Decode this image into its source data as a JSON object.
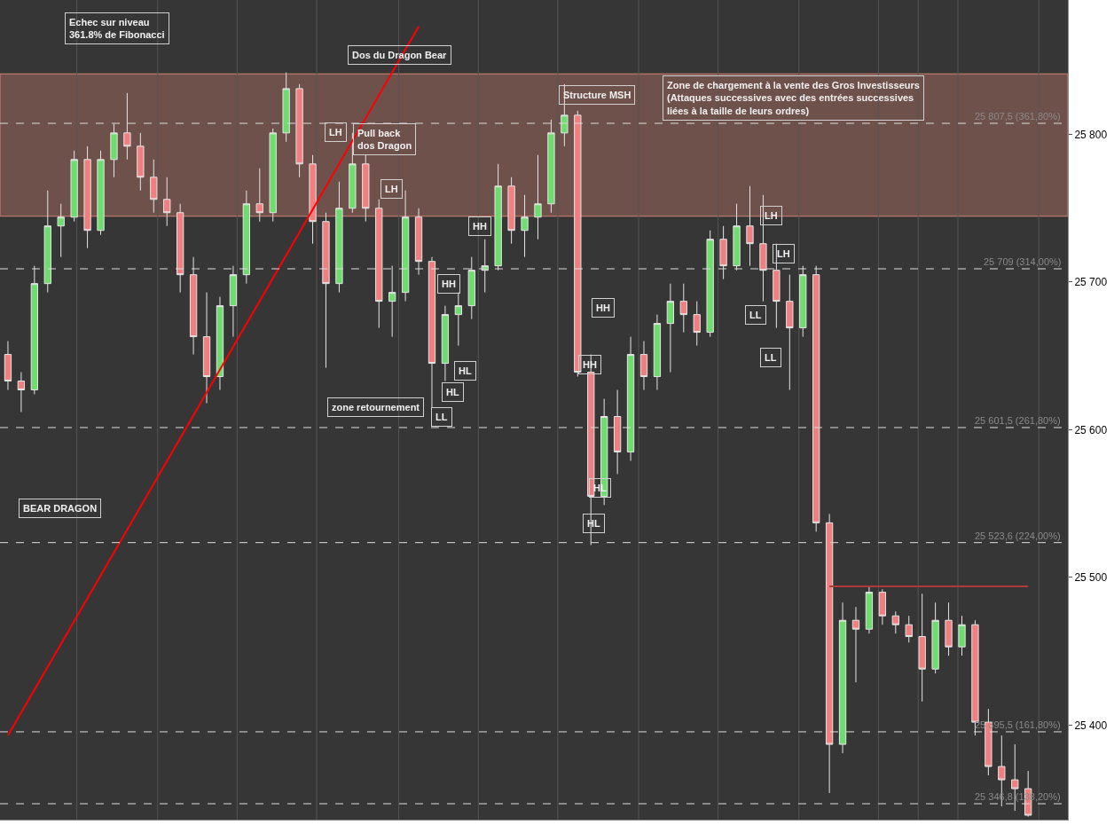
{
  "chart_data": {
    "type": "candlestick",
    "categories": [
      null,
      null,
      null,
      null,
      null,
      null,
      null,
      null,
      null,
      null,
      null,
      null,
      null,
      null,
      null,
      null,
      null,
      null,
      null,
      null,
      null,
      null,
      null,
      null,
      null,
      null,
      null,
      null,
      null,
      null,
      null,
      null,
      null,
      null,
      null,
      null,
      null,
      null,
      null,
      null,
      null,
      null,
      null,
      null,
      null,
      null,
      null,
      null,
      null,
      null,
      null,
      null,
      null,
      null,
      null,
      null,
      null,
      null,
      null,
      null,
      null,
      null,
      null,
      null,
      null,
      null,
      null,
      null,
      null,
      null,
      null,
      null,
      null,
      null,
      null,
      null,
      null,
      null
    ],
    "ohlc": [
      [
        25651,
        25660,
        25627,
        25633
      ],
      [
        25633,
        25639,
        25612,
        25627
      ],
      [
        25627,
        25711,
        25624,
        25699
      ],
      [
        25699,
        25762,
        25693,
        25738
      ],
      [
        25738,
        25753,
        25717,
        25744
      ],
      [
        25744,
        25789,
        25741,
        25783
      ],
      [
        25783,
        25792,
        25723,
        25735
      ],
      [
        25735,
        25789,
        25732,
        25783
      ],
      [
        25783,
        25807,
        25771,
        25801
      ],
      [
        25801,
        25828,
        25783,
        25792
      ],
      [
        25792,
        25801,
        25762,
        25771
      ],
      [
        25771,
        25783,
        25747,
        25756
      ],
      [
        25756,
        25771,
        25738,
        25747
      ],
      [
        25747,
        25753,
        25693,
        25705
      ],
      [
        25705,
        25717,
        25651,
        25663
      ],
      [
        25663,
        25693,
        25618,
        25636
      ],
      [
        25636,
        25690,
        25627,
        25684
      ],
      [
        25684,
        25711,
        25663,
        25705
      ],
      [
        25705,
        25762,
        25699,
        25753
      ],
      [
        25753,
        25777,
        25741,
        25747
      ],
      [
        25747,
        25804,
        25741,
        25801
      ],
      [
        25801,
        25842,
        25795,
        25831
      ],
      [
        25831,
        25834,
        25771,
        25780
      ],
      [
        25780,
        25786,
        25726,
        25741
      ],
      [
        25741,
        25747,
        25642,
        25699
      ],
      [
        25699,
        25768,
        25693,
        25750
      ],
      [
        25750,
        25801,
        25747,
        25780
      ],
      [
        25780,
        25786,
        25741,
        25750
      ],
      [
        25750,
        25756,
        25669,
        25687
      ],
      [
        25687,
        25711,
        25663,
        25693
      ],
      [
        25693,
        25762,
        25687,
        25744
      ],
      [
        25744,
        25750,
        25705,
        25714
      ],
      [
        25714,
        25717,
        25615,
        25645
      ],
      [
        25645,
        25684,
        25633,
        25678
      ],
      [
        25678,
        25693,
        25657,
        25684
      ],
      [
        25684,
        25717,
        25675,
        25708
      ],
      [
        25708,
        25729,
        25693,
        25711
      ],
      [
        25711,
        25780,
        25708,
        25765
      ],
      [
        25765,
        25771,
        25726,
        25735
      ],
      [
        25735,
        25759,
        25717,
        25744
      ],
      [
        25744,
        25786,
        25729,
        25753
      ],
      [
        25753,
        25810,
        25747,
        25801
      ],
      [
        25801,
        25834,
        25792,
        25813
      ],
      [
        25813,
        25816,
        25636,
        25639
      ],
      [
        25639,
        25651,
        25522,
        25555
      ],
      [
        25555,
        25621,
        25549,
        25609
      ],
      [
        25609,
        25627,
        25570,
        25585
      ],
      [
        25585,
        25663,
        25579,
        25651
      ],
      [
        25651,
        25660,
        25627,
        25636
      ],
      [
        25636,
        25678,
        25627,
        25672
      ],
      [
        25672,
        25699,
        25639,
        25687
      ],
      [
        25687,
        25699,
        25666,
        25678
      ],
      [
        25678,
        25687,
        25657,
        25666
      ],
      [
        25666,
        25735,
        25663,
        25729
      ],
      [
        25729,
        25738,
        25702,
        25711
      ],
      [
        25711,
        25753,
        25708,
        25738
      ],
      [
        25738,
        25765,
        25711,
        25726
      ],
      [
        25726,
        25759,
        25687,
        25708
      ],
      [
        25708,
        25726,
        25669,
        25687
      ],
      [
        25687,
        25705,
        25627,
        25669
      ],
      [
        25669,
        25711,
        25663,
        25705
      ],
      [
        25705,
        25711,
        25531,
        25537
      ],
      [
        25537,
        25543,
        25354,
        25387
      ],
      [
        25387,
        25483,
        25381,
        25471
      ],
      [
        25471,
        25480,
        25429,
        25465
      ],
      [
        25465,
        25494,
        25462,
        25490
      ],
      [
        25490,
        25492,
        25468,
        25474
      ],
      [
        25474,
        25477,
        25462,
        25468
      ],
      [
        25468,
        25474,
        25456,
        25460
      ],
      [
        25460,
        25489,
        25416,
        25438
      ],
      [
        25438,
        25483,
        25435,
        25471
      ],
      [
        25471,
        25483,
        25447,
        25453
      ],
      [
        25453,
        25474,
        25447,
        25468
      ],
      [
        25468,
        25471,
        25393,
        25402
      ],
      [
        25402,
        25411,
        25366,
        25372
      ],
      [
        25372,
        25393,
        25345,
        25363
      ],
      [
        25363,
        25387,
        25342,
        25357
      ],
      [
        25357,
        25369,
        25338,
        25339
      ]
    ],
    "series": [
      {
        "type": "line",
        "color": "#ff0000",
        "values": [
          25393,
          null,
          null,
          null,
          null,
          null,
          null,
          null,
          null,
          null,
          null,
          null,
          null,
          null,
          null,
          null,
          null,
          null,
          null,
          null,
          null,
          null,
          null,
          null,
          null,
          null,
          null,
          null,
          null,
          null,
          null,
          25873,
          null,
          null,
          null,
          null,
          null,
          null,
          null,
          null,
          null,
          null,
          null,
          null,
          null,
          null,
          null,
          null,
          null,
          null,
          null,
          null,
          null,
          null,
          null,
          null,
          null,
          null,
          null,
          null,
          null,
          null,
          null,
          null,
          null,
          null,
          null,
          null,
          null,
          null,
          null,
          null,
          null,
          null,
          null,
          null,
          null,
          null
        ]
      },
      {
        "type": "line",
        "color": "#b03a3a",
        "values": [
          null,
          null,
          null,
          null,
          null,
          null,
          null,
          null,
          null,
          null,
          null,
          null,
          null,
          null,
          null,
          null,
          null,
          null,
          null,
          null,
          null,
          null,
          null,
          null,
          null,
          null,
          null,
          null,
          null,
          null,
          null,
          null,
          null,
          null,
          null,
          null,
          null,
          null,
          null,
          null,
          null,
          null,
          null,
          null,
          null,
          null,
          null,
          null,
          null,
          null,
          null,
          null,
          null,
          null,
          null,
          null,
          null,
          null,
          null,
          null,
          null,
          null,
          25494,
          null,
          null,
          null,
          null,
          null,
          null,
          null,
          null,
          null,
          null,
          null,
          null,
          null,
          null,
          25494
        ]
      }
    ],
    "ylim": [
      25336,
      25891
    ],
    "yticks": [
      {
        "value": 25400,
        "label": "25 400"
      },
      {
        "value": 25500,
        "label": "25 500"
      },
      {
        "value": 25600,
        "label": "25 600"
      },
      {
        "value": 25700,
        "label": "25 700"
      },
      {
        "value": 25800,
        "label": "25 800"
      }
    ],
    "tick_labels": "y",
    "ref_lines": [
      {
        "axis": "y",
        "value": 25807.5,
        "label": "25 807,5 (361,80%)",
        "color": "#dddddd",
        "line_style": "dashed"
      },
      {
        "axis": "y",
        "value": 25709,
        "label": "25 709 (314,00%)",
        "color": "#dddddd",
        "line_style": "dashed"
      },
      {
        "axis": "y",
        "value": 25601.5,
        "label": "25 601,5 (261,80%)",
        "color": "#dddddd",
        "line_style": "dashed"
      },
      {
        "axis": "y",
        "value": 25523.6,
        "label": "25 523,6 (224,00%)",
        "color": "#dddddd",
        "line_style": "dashed"
      },
      {
        "axis": "y",
        "value": 25395.5,
        "label": "25 395,5 (161,80%)",
        "color": "#dddddd",
        "line_style": "dashed"
      },
      {
        "axis": "y",
        "value": 25346.8,
        "label": "25 346,8 (138,20%)",
        "color": "#dddddd",
        "line_style": "dashed"
      }
    ],
    "bands": [
      {
        "axis": "y",
        "from": 25744.6,
        "to": 25841,
        "color": "#7a5650"
      }
    ],
    "annotations": [
      "Echec sur niveau\n361.8% de Fibonacci",
      "Dos du Dragon Bear",
      "LH",
      "Pull back\ndos Dragon",
      "LH",
      "Structure MSH",
      "Zone de chargement à la vente des Gros Investisseurs\n(Attaques successives avec des entrées successives\nliées à la taille de leurs ordres)",
      "HH",
      "HH",
      "HL",
      "HL",
      "LL",
      "zone retournement",
      "HH",
      "HH",
      "HL",
      "HL",
      "LH",
      "LH",
      "LL",
      "LL",
      "BEAR DRAGON"
    ]
  }
}
